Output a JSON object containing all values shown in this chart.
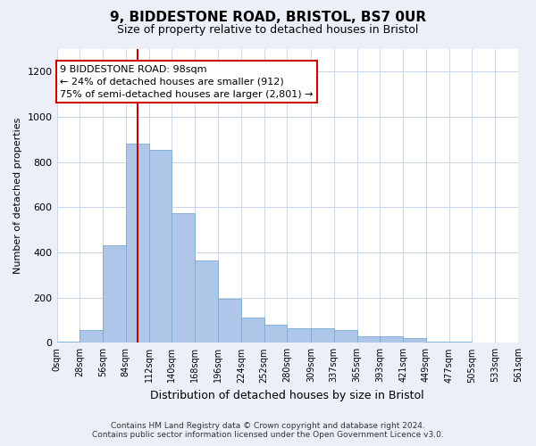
{
  "title": "9, BIDDESTONE ROAD, BRISTOL, BS7 0UR",
  "subtitle": "Size of property relative to detached houses in Bristol",
  "xlabel": "Distribution of detached houses by size in Bristol",
  "ylabel": "Number of detached properties",
  "bin_labels": [
    "0sqm",
    "28sqm",
    "56sqm",
    "84sqm",
    "112sqm",
    "140sqm",
    "168sqm",
    "196sqm",
    "224sqm",
    "252sqm",
    "280sqm",
    "309sqm",
    "337sqm",
    "365sqm",
    "393sqm",
    "421sqm",
    "449sqm",
    "477sqm",
    "505sqm",
    "533sqm",
    "561sqm"
  ],
  "bin_edges": [
    0,
    28,
    56,
    84,
    112,
    140,
    168,
    196,
    224,
    252,
    280,
    309,
    337,
    365,
    393,
    421,
    449,
    477,
    505,
    533,
    561
  ],
  "bar_values": [
    5,
    55,
    430,
    880,
    855,
    575,
    365,
    195,
    110,
    80,
    65,
    65,
    55,
    30,
    30,
    20,
    5,
    5,
    2,
    1
  ],
  "bar_color": "#aec6e8",
  "bar_edge_color": "#7aaad0",
  "property_size": 98,
  "vline_color": "#cc0000",
  "annotation_text": "9 BIDDESTONE ROAD: 98sqm\n← 24% of detached houses are smaller (912)\n75% of semi-detached houses are larger (2,801) →",
  "annotation_box_color": "#ffffff",
  "annotation_box_edge": "#cc0000",
  "ylim": [
    0,
    1300
  ],
  "yticks": [
    0,
    200,
    400,
    600,
    800,
    1000,
    1200
  ],
  "footer_line1": "Contains HM Land Registry data © Crown copyright and database right 2024.",
  "footer_line2": "Contains public sector information licensed under the Open Government Licence v3.0.",
  "bg_color": "#eaeff8",
  "plot_bg_color": "#ffffff",
  "grid_color": "#c8d4e8",
  "title_fontsize": 11,
  "subtitle_fontsize": 9,
  "ylabel_fontsize": 8,
  "xlabel_fontsize": 9,
  "tick_fontsize": 7,
  "footer_fontsize": 6.5
}
